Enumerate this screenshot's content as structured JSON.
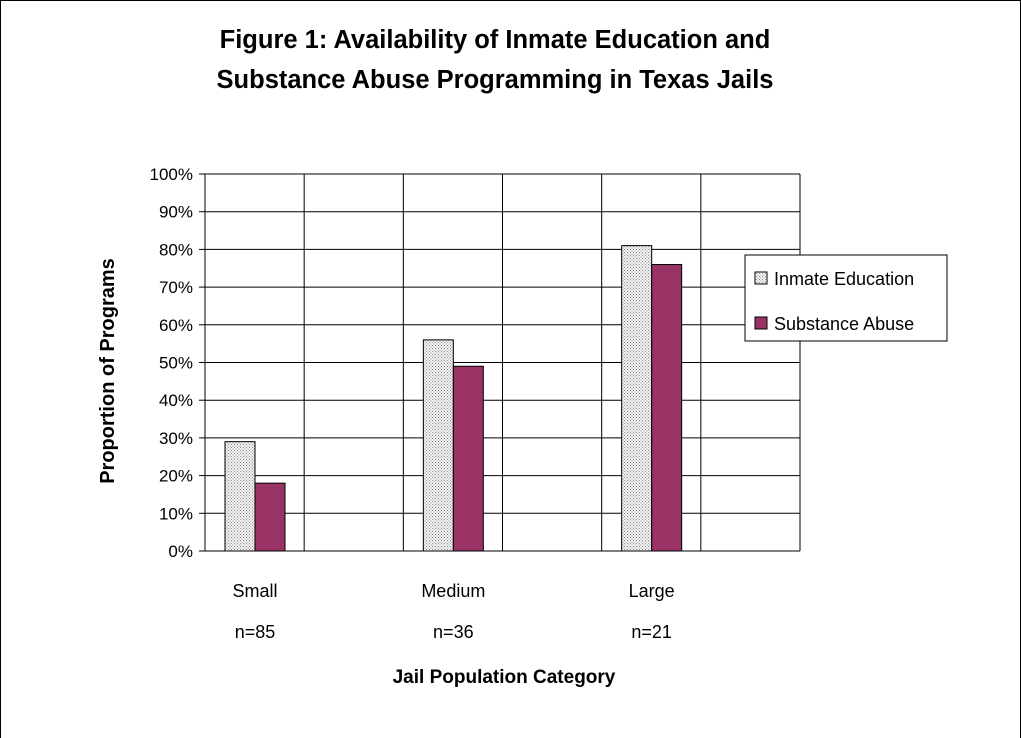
{
  "chart_data": {
    "type": "bar",
    "title": [
      "Figure 1:  Availability of Inmate Education and",
      "Substance Abuse Programming in Texas Jails"
    ],
    "xlabel": "Jail Population Category",
    "ylabel": "Proportion of Programs",
    "categories": [
      {
        "name": "Small",
        "n": "n=85"
      },
      {
        "name": "Medium",
        "n": "n=36"
      },
      {
        "name": "Large",
        "n": "n=21"
      }
    ],
    "series": [
      {
        "name": "Inmate Education",
        "values": [
          29,
          56,
          81
        ],
        "color": "#e4e4e4",
        "pattern": "dotted"
      },
      {
        "name": "Substance Abuse",
        "values": [
          18,
          49,
          76
        ],
        "color": "#993366",
        "pattern": "solid"
      }
    ],
    "ylim": [
      0,
      100
    ],
    "yticks": [
      "0%",
      "10%",
      "20%",
      "30%",
      "40%",
      "50%",
      "60%",
      "70%",
      "80%",
      "90%",
      "100%"
    ],
    "grid": true,
    "legend_position": "right"
  }
}
